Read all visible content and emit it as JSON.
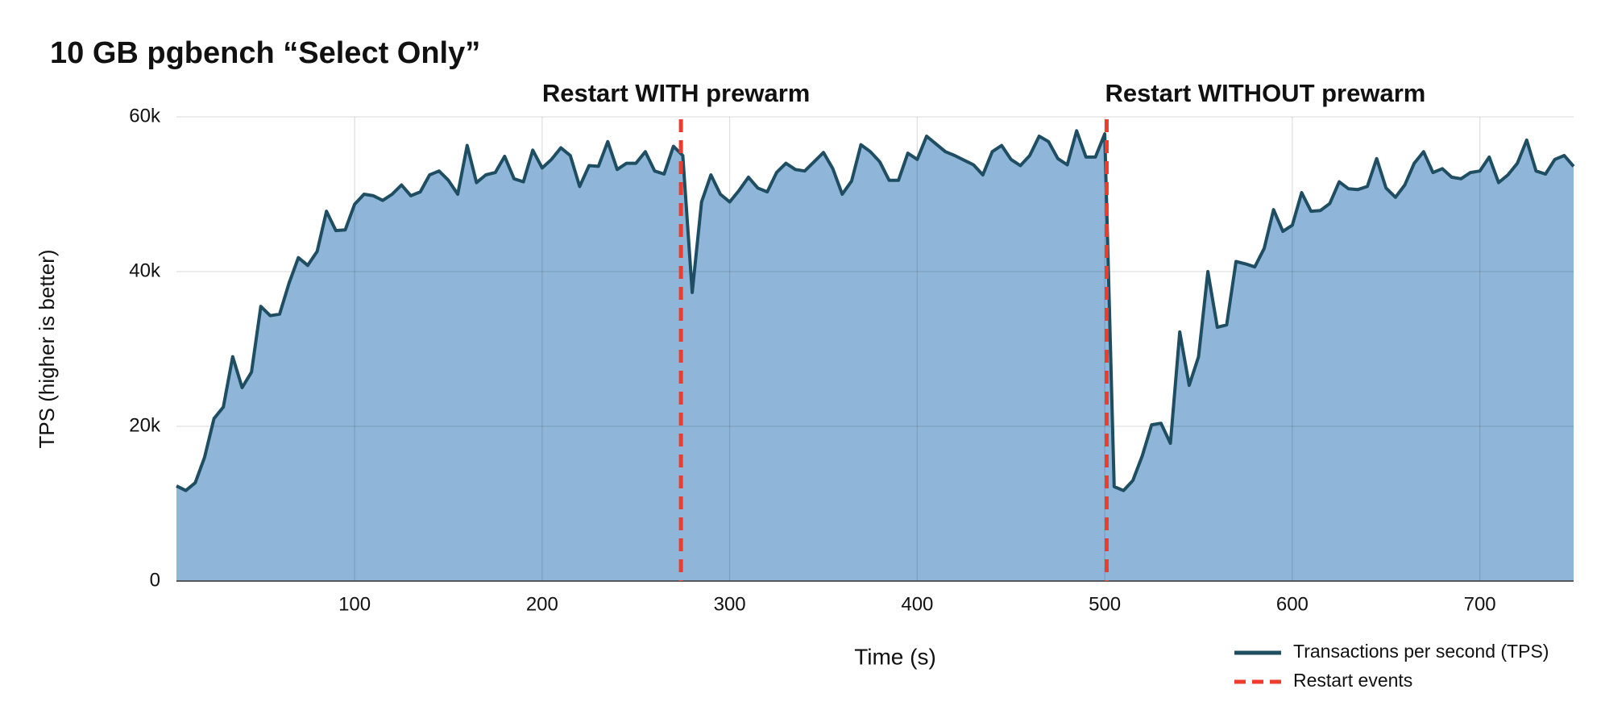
{
  "chart_data": {
    "type": "area",
    "title": "10 GB pgbench “Select Only”",
    "x_label": "Time (s)",
    "y_label": "TPS (higher is better)",
    "x": [
      5,
      10,
      15,
      20,
      25,
      30,
      35,
      40,
      45,
      50,
      55,
      60,
      65,
      70,
      75,
      80,
      85,
      90,
      95,
      100,
      105,
      110,
      115,
      120,
      125,
      130,
      135,
      140,
      145,
      150,
      155,
      160,
      165,
      170,
      175,
      180,
      185,
      190,
      195,
      200,
      205,
      210,
      215,
      220,
      225,
      230,
      235,
      240,
      245,
      250,
      255,
      260,
      265,
      270,
      275,
      280,
      285,
      290,
      295,
      300,
      305,
      310,
      315,
      320,
      325,
      330,
      335,
      340,
      345,
      350,
      355,
      360,
      365,
      370,
      375,
      380,
      385,
      390,
      395,
      400,
      405,
      410,
      415,
      420,
      425,
      430,
      435,
      440,
      445,
      450,
      455,
      460,
      465,
      470,
      475,
      480,
      485,
      490,
      495,
      500,
      505,
      510,
      515,
      520,
      525,
      530,
      535,
      540,
      545,
      550,
      555,
      560,
      565,
      570,
      575,
      580,
      585,
      590,
      595,
      600,
      605,
      610,
      615,
      620,
      625,
      630,
      635,
      640,
      645,
      650,
      655,
      660,
      665,
      670,
      675,
      680,
      685,
      690,
      695,
      700,
      705,
      710,
      715,
      720,
      725,
      730,
      735,
      740,
      745,
      750
    ],
    "series": [
      {
        "name": "Transactions per second (TPS)",
        "color": "#1f4e63",
        "fill": "#8fb6d9",
        "values": [
          12300,
          11700,
          12700,
          16000,
          21000,
          22500,
          29000,
          25000,
          27000,
          35500,
          34300,
          34500,
          38500,
          41800,
          40800,
          42600,
          47800,
          45300,
          45400,
          48700,
          50000,
          49800,
          49200,
          50000,
          51200,
          49800,
          50300,
          52500,
          53000,
          51800,
          50000,
          56300,
          51500,
          52500,
          52800,
          54900,
          52000,
          51600,
          55700,
          53400,
          54500,
          56000,
          55000,
          51000,
          53700,
          53600,
          56800,
          53200,
          54000,
          54000,
          55500,
          53000,
          52600,
          56200,
          55000,
          37300,
          49000,
          52500,
          50000,
          49000,
          50500,
          52200,
          50800,
          50300,
          52800,
          54000,
          53200,
          53000,
          54200,
          55400,
          53300,
          50000,
          51700,
          56400,
          55500,
          54200,
          51800,
          51800,
          55300,
          54500,
          57500,
          56500,
          55500,
          55000,
          54400,
          53800,
          52500,
          55500,
          56300,
          54500,
          53700,
          55000,
          57500,
          56800,
          54600,
          53800,
          58200,
          54800,
          54800,
          57800,
          12200,
          11700,
          13000,
          16200,
          20200,
          20400,
          17800,
          32200,
          25300,
          29000,
          40000,
          32800,
          33100,
          41300,
          41000,
          40600,
          43000,
          48000,
          45200,
          46000,
          50200,
          47800,
          47900,
          48800,
          51600,
          50700,
          50600,
          51000,
          54600,
          50800,
          49600,
          51200,
          54000,
          55500,
          52800,
          53300,
          52200,
          52000,
          52800,
          53000,
          54800,
          51500,
          52500,
          54000,
          57000,
          53000,
          52600,
          54500,
          55000,
          53600
        ]
      }
    ],
    "vlines": {
      "name": "Restart events",
      "color": "#ef3b2c",
      "x": [
        274,
        501
      ],
      "labels": [
        "Restart WITH prewarm",
        "Restart WITHOUT prewarm"
      ]
    },
    "xlim": [
      5,
      750
    ],
    "xticks": [
      100,
      200,
      300,
      400,
      500,
      600,
      700
    ],
    "ylim": [
      0,
      60000
    ],
    "yticks": [
      0,
      {
        "value": 20000,
        "label": "20k"
      },
      {
        "value": 40000,
        "label": "40k"
      },
      {
        "value": 60000,
        "label": "60k"
      }
    ],
    "grid": true
  }
}
